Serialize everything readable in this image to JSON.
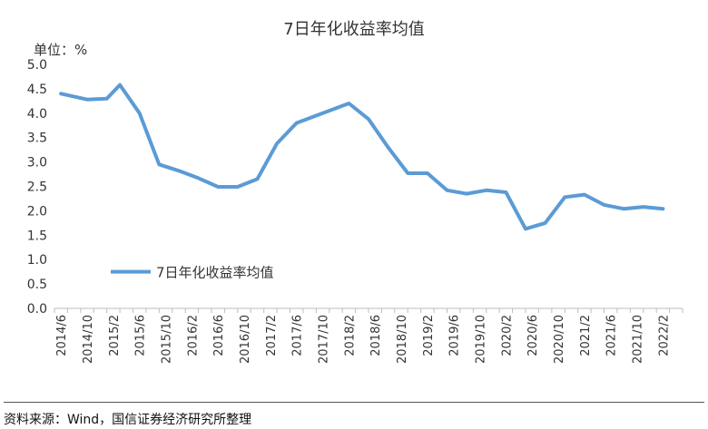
{
  "chart_data": {
    "type": "line",
    "title": "7日年化收益率均值",
    "unit_label": "单位：%",
    "ylim": [
      0,
      5
    ],
    "y_ticks": [
      "0.0",
      "0.5",
      "1.0",
      "1.5",
      "2.0",
      "2.5",
      "3.0",
      "3.5",
      "4.0",
      "4.5",
      "5.0"
    ],
    "x_tick_labels": [
      "2014/6",
      "2014/10",
      "2015/2",
      "2015/6",
      "2015/10",
      "2016/2",
      "2016/6",
      "2016/10",
      "2017/2",
      "2017/6",
      "2017/10",
      "2018/2",
      "2018/6",
      "2018/10",
      "2019/2",
      "2019/6",
      "2019/10",
      "2020/2",
      "2020/6",
      "2020/10",
      "2021/2",
      "2021/6",
      "2021/10",
      "2022/2"
    ],
    "x": [
      "2014/6",
      "2014/8",
      "2014/10",
      "2014/12",
      "2015/2",
      "2015/4",
      "2015/6",
      "2015/8",
      "2015/10",
      "2015/12",
      "2016/2",
      "2016/4",
      "2016/6",
      "2016/8",
      "2016/10",
      "2016/12",
      "2017/2",
      "2017/4",
      "2017/6",
      "2017/8",
      "2017/10",
      "2017/12",
      "2018/2",
      "2018/4",
      "2018/6",
      "2018/8",
      "2018/10",
      "2018/12",
      "2019/2",
      "2019/4",
      "2019/6",
      "2019/8",
      "2019/10",
      "2019/12",
      "2020/2",
      "2020/4",
      "2020/6",
      "2020/8",
      "2020/10",
      "2020/12",
      "2021/2",
      "2021/4",
      "2021/6",
      "2021/8",
      "2021/10",
      "2021/12",
      "2022/2",
      "2022/4"
    ],
    "series": [
      {
        "name": "7日年化收益率均值",
        "color": "#5b9bd5",
        "points": [
          [
            "2014/6",
            4.4
          ],
          [
            "2014/10",
            4.28
          ],
          [
            "2015/1",
            4.3
          ],
          [
            "2015/3",
            4.58
          ],
          [
            "2015/6",
            4.0
          ],
          [
            "2015/9",
            2.95
          ],
          [
            "2015/12",
            2.82
          ],
          [
            "2016/3",
            2.67
          ],
          [
            "2016/6",
            2.49
          ],
          [
            "2016/9",
            2.49
          ],
          [
            "2016/12",
            2.65
          ],
          [
            "2017/3",
            3.38
          ],
          [
            "2017/6",
            3.8
          ],
          [
            "2017/9",
            3.95
          ],
          [
            "2017/12",
            4.1
          ],
          [
            "2018/2",
            4.2
          ],
          [
            "2018/5",
            3.88
          ],
          [
            "2018/8",
            3.3
          ],
          [
            "2018/11",
            2.77
          ],
          [
            "2019/2",
            2.77
          ],
          [
            "2019/5",
            2.42
          ],
          [
            "2019/8",
            2.35
          ],
          [
            "2019/11",
            2.42
          ],
          [
            "2020/2",
            2.38
          ],
          [
            "2020/5",
            1.63
          ],
          [
            "2020/8",
            1.75
          ],
          [
            "2020/11",
            2.28
          ],
          [
            "2021/2",
            2.33
          ],
          [
            "2021/5",
            2.12
          ],
          [
            "2021/8",
            2.04
          ],
          [
            "2021/11",
            2.08
          ],
          [
            "2022/2",
            2.04
          ]
        ]
      }
    ],
    "legend": {
      "label": "7日年化收益率均值",
      "position": "lower-left"
    },
    "grid": false
  },
  "source": "资料来源：Wind，国信证券经济研究所整理"
}
